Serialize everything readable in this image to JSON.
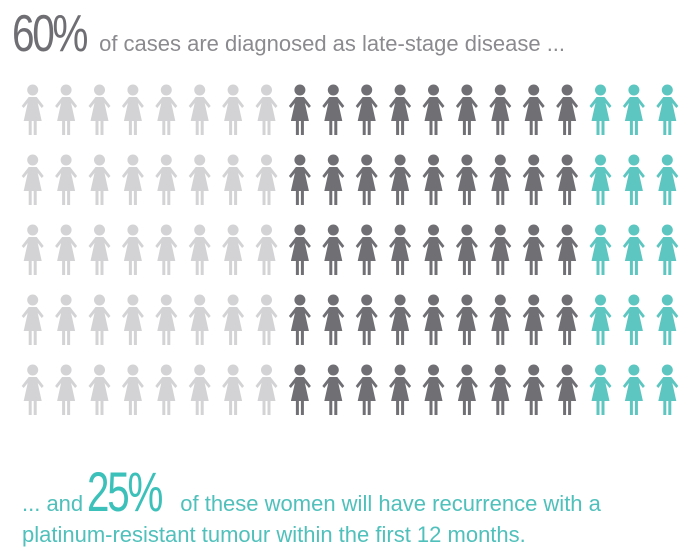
{
  "headline": {
    "percent": "60%",
    "text": "of cases are diagnosed as late-stage disease ..."
  },
  "footer": {
    "prefix": "... and",
    "percent": "25%",
    "text_line1": "of these women will have recurrence with a",
    "text_line2": "platinum-resistant tumour within the first 12 months."
  },
  "grid": {
    "rows": 5,
    "cols": 20,
    "light_count": 8,
    "dark_count": 9,
    "teal_count": 3,
    "colors": {
      "light": "#d3d3d5",
      "dark": "#6f6f74",
      "teal": "#5dc6c1"
    },
    "icon": "woman-figure-icon"
  }
}
